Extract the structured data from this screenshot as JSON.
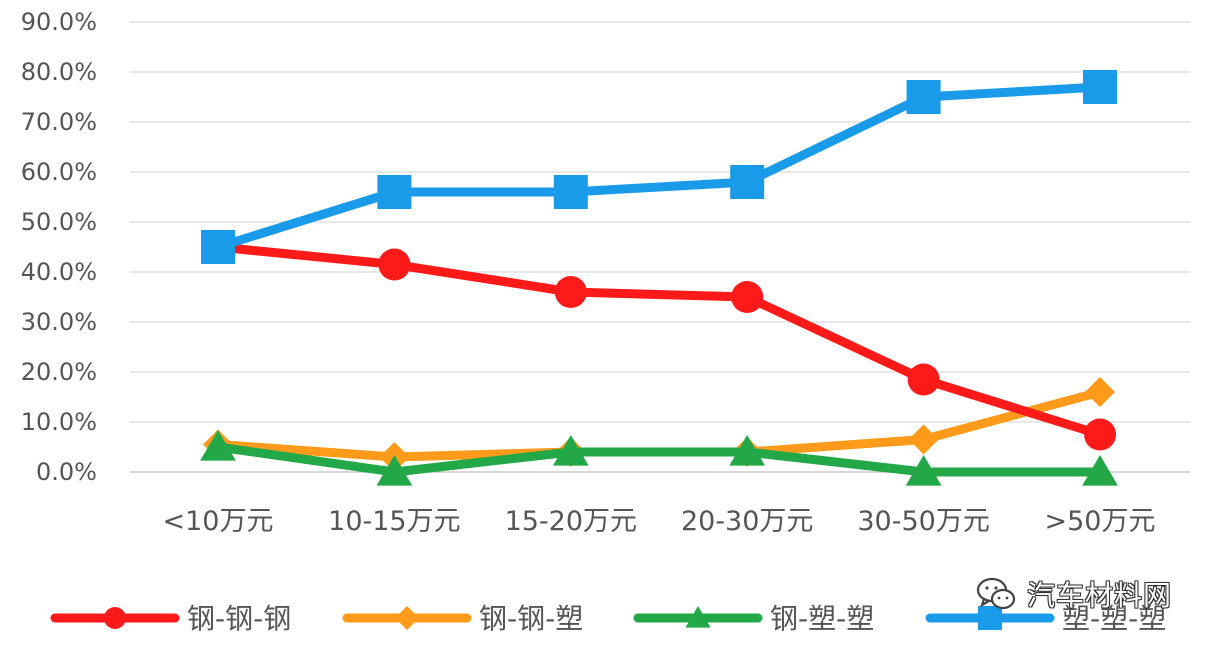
{
  "chart_data": {
    "type": "line",
    "categories": [
      "<10万元",
      "10-15万元",
      "15-20万元",
      "20-30万元",
      "30-50万元",
      ">50万元"
    ],
    "ylim": [
      0,
      90
    ],
    "yticks": [
      "0.0%",
      "10.0%",
      "20.0%",
      "30.0%",
      "40.0%",
      "50.0%",
      "60.0%",
      "70.0%",
      "80.0%",
      "90.0%"
    ],
    "grid": true,
    "legend_position": "bottom",
    "series": [
      {
        "name": "钢-钢-钢",
        "color": "#ff1a1a",
        "marker": "circle",
        "values": [
          45.0,
          41.5,
          36.0,
          35.0,
          18.5,
          7.5
        ]
      },
      {
        "name": "钢-钢-塑",
        "color": "#ff9a1a",
        "marker": "diamond",
        "values": [
          5.5,
          3.0,
          4.0,
          4.0,
          6.5,
          16.0
        ]
      },
      {
        "name": "钢-塑-塑",
        "color": "#22a846",
        "marker": "triangle",
        "values": [
          5.0,
          0.0,
          4.0,
          4.0,
          0.0,
          0.0
        ]
      },
      {
        "name": "塑-塑-塑",
        "color": "#1a9bea",
        "marker": "square",
        "values": [
          45.0,
          56.0,
          56.0,
          58.0,
          75.0,
          77.0
        ]
      }
    ]
  },
  "watermark": {
    "text": "汽车材料网",
    "icon": "wechat-icon"
  }
}
